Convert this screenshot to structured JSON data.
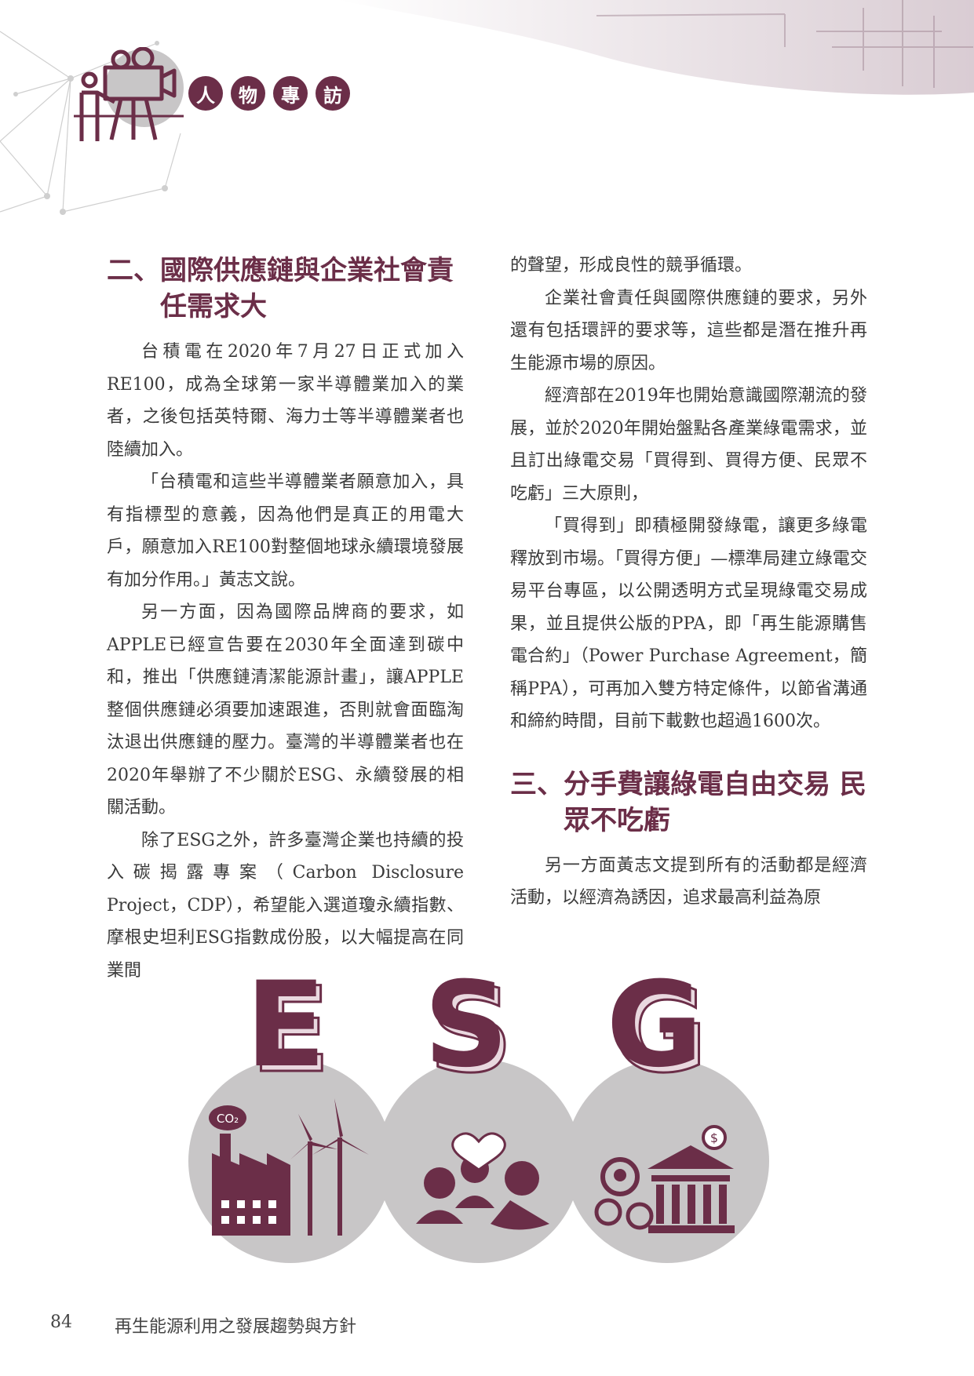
{
  "header": {
    "section_chars": [
      "人",
      "物",
      "專",
      "訪"
    ],
    "accent_color": "#6b2e48",
    "icon": "interviewer-camera-icon"
  },
  "left_column": {
    "heading_line1": "二、國際供應鏈與企業社會責",
    "heading_line2": "任需求大",
    "paragraphs": [
      "台積電在2020年7月27日正式加入RE100，成為全球第一家半導體業加入的業者，之後包括英特爾、海力士等半導體業者也陸續加入。",
      "「台積電和這些半導體業者願意加入，具有指標型的意義，因為他們是真正的用電大戶，願意加入RE100對整個地球永續環境發展有加分作用。」黃志文說。",
      "另一方面，因為國際品牌商的要求，如APPLE已經宣告要在2030年全面達到碳中和，推出「供應鏈清潔能源計畫」，讓APPLE整個供應鏈必須要加速跟進，否則就會面臨淘汰退出供應鏈的壓力。臺灣的半導體業者也在2020年舉辦了不少關於ESG、永續發展的相關活動。",
      "除了ESG之外，許多臺灣企業也持續的投入碳揭露專案（Carbon Disclosure Project，CDP），希望能入選道瓊永續指數、摩根史坦利ESG指數成份股，以大幅提高在同業間"
    ]
  },
  "right_column": {
    "continuation": "的聲望，形成良性的競爭循環。",
    "paragraphs": [
      "企業社會責任與國際供應鏈的要求，另外還有包括環評的要求等，這些都是潛在推升再生能源市場的原因。",
      "經濟部在2019年也開始意識國際潮流的發展，並於2020年開始盤點各產業綠電需求，並且訂出綠電交易「買得到、買得方便、民眾不吃虧」三大原則，",
      "「買得到」即積極開發綠電，讓更多綠電釋放到市場。「買得方便」—標準局建立綠電交易平台專區，以公開透明方式呈現綠電交易成果，並且提供公版的PPA，即「再生能源購售電合約」（Power Purchase Agreement，簡稱PPA），可再加入雙方特定條件，以節省溝通和締約時間，目前下載數也超過1600次。"
    ],
    "heading_line1": "三、分手費讓綠電自由交易 民",
    "heading_line2": "眾不吃虧",
    "paragraphs2": [
      "另一方面黃志文提到所有的活動都是經濟活動，以經濟為誘因，追求最高利益為原"
    ]
  },
  "esg_graphic": {
    "letters": [
      "E",
      "S",
      "G"
    ],
    "co2_label": "CO₂",
    "circle_color": "#c8c6c7",
    "icon_color": "#6b2e48",
    "icons": [
      "factory-windmill-icon",
      "community-care-icon",
      "finance-governance-icon"
    ]
  },
  "footer": {
    "page_number": "84",
    "title": "再生能源利用之發展趨勢與方針"
  }
}
